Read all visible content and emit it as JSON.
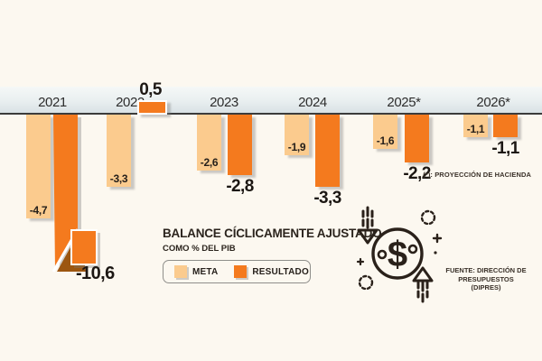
{
  "chart_data": {
    "type": "bar",
    "title": "BALANCE CÍCLICAMENTE AJUSTADO",
    "subtitle": "COMO % DEL PIB",
    "categories": [
      "2021",
      "2022",
      "2023",
      "2024",
      "2025*",
      "2026*"
    ],
    "series": [
      {
        "name": "META",
        "color": "#FBCB8E",
        "values": [
          -4.7,
          -3.3,
          -2.6,
          -1.9,
          -1.6,
          -1.1
        ],
        "labels": [
          "-4,7",
          "-3,3",
          "-2,6",
          "-1,9",
          "-1,6",
          "-1,1"
        ]
      },
      {
        "name": "RESULTADO",
        "color": "#F47A1E",
        "values": [
          -10.6,
          0.5,
          -2.8,
          -3.3,
          -2.2,
          -1.1
        ],
        "labels": [
          "-10,6",
          "0,5",
          "-2,8",
          "-3,3",
          "-2,2",
          "-1,1"
        ]
      }
    ],
    "truncated_bar": {
      "series": "RESULTADO",
      "category": "2021",
      "style": "folded to fit"
    },
    "ylim": [
      -10.6,
      0.5
    ],
    "grid": false,
    "legend_position": "bottom-left",
    "footnote": "(*): PROYECCIÓN DE HACIENDA",
    "source_line1": "FUENTE: DIRECCIÓN DE",
    "source_line2": "PRESUPUESTOS (DIPRES)"
  },
  "legend": {
    "items": [
      {
        "label": "META",
        "color": "#FBCB8E"
      },
      {
        "label": "RESULTADO",
        "color": "#F47A1E"
      }
    ]
  },
  "icons": {
    "money": "dollar-circle-arrows-icon",
    "glyph": "$"
  },
  "colors": {
    "background": "#FCF8F0",
    "band_top": "#F5F8F7",
    "band_bottom": "#D9E2E5",
    "axis": "#3B3B3B",
    "meta": "#FBCB8E",
    "resultado": "#F47A1E",
    "fold": "#9C5610",
    "text": "#26201B"
  }
}
